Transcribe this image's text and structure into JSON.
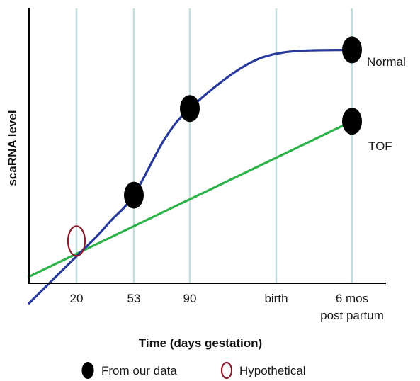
{
  "chart_data": {
    "type": "line",
    "title": "",
    "xlabel": "Time (days gestation)",
    "ylabel": "scaRNA level",
    "categories": [
      "20",
      "53",
      "90",
      "birth",
      "6 mos post partum"
    ],
    "category_lines": [
      [
        "20"
      ],
      [
        "53"
      ],
      [
        "90"
      ],
      [
        "birth"
      ],
      [
        "6 mos",
        "post partum"
      ]
    ],
    "ylim": [
      0,
      100
    ],
    "grid": "vertical lines at each category",
    "series": [
      {
        "name": "Normal",
        "color": "#27399a",
        "curve": [
          [
            0,
            10
          ],
          [
            0.36,
            18
          ],
          [
            0.6,
            24
          ],
          [
            1.0,
            34
          ],
          [
            1.55,
            56
          ],
          [
            2.0,
            68
          ],
          [
            2.6,
            84
          ],
          [
            3.1,
            90
          ],
          [
            4.0,
            91
          ]
        ],
        "markers": [
          [
            1.0,
            34
          ],
          [
            2.0,
            68
          ],
          [
            4.0,
            91
          ]
        ]
      },
      {
        "name": "TOF",
        "color": "#2db24a",
        "curve": [
          [
            0,
            11
          ],
          [
            4.0,
            63
          ]
        ],
        "markers": [
          [
            4.0,
            63
          ]
        ]
      }
    ],
    "hypothetical_marker": {
      "x": 0,
      "y": 16,
      "color": "#8b1a2b"
    },
    "legend": {
      "placement": "bottom",
      "items": [
        {
          "symbol": "filled-ellipse",
          "label": "From our data"
        },
        {
          "symbol": "open-ellipse",
          "label": "Hypothetical"
        }
      ]
    }
  }
}
